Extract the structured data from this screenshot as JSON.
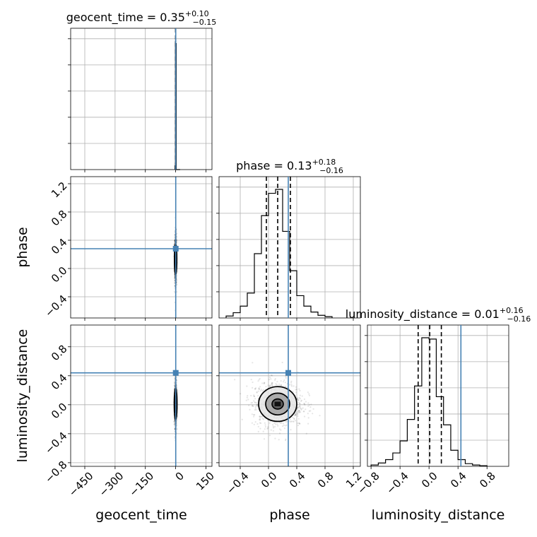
{
  "colors": {
    "truth": "#4682b4",
    "hist": "#000000",
    "grid": "#b0b0b0"
  },
  "chart_data": {
    "type": "corner",
    "grid": true,
    "parameters": [
      {
        "name": "geocent_time",
        "xlabel": "geocent_time",
        "ylabel": "",
        "title": {
          "prefix": "geocent_time = ",
          "median": "0.35",
          "upper": "+0.10",
          "lower": "−0.15"
        },
        "range": [
          -520,
          180
        ],
        "ticks": [
          -450,
          -300,
          -150,
          0,
          150
        ],
        "tick_labels": [
          "−450",
          "−300",
          "−150",
          "0",
          "150"
        ],
        "truth": 0.5,
        "quantiles": [
          0.2,
          0.35,
          0.45
        ],
        "hist": {
          "edges": [
            -3,
            -1,
            1,
            3,
            22
          ],
          "counts": [
            0.03,
            1.0,
            0.98,
            0.0
          ]
        }
      },
      {
        "name": "phase",
        "xlabel": "phase",
        "ylabel": "phase",
        "title": {
          "prefix": "phase = ",
          "median": "0.13",
          "upper": "+0.18",
          "lower": "−0.16"
        },
        "range": [
          -0.7,
          1.3
        ],
        "ticks": [
          -0.4,
          0.0,
          0.4,
          0.8,
          1.2
        ],
        "tick_labels": [
          "−0.4",
          "0.0",
          "0.4",
          "0.8",
          "1.2"
        ],
        "truth": 0.28,
        "quantiles": [
          -0.03,
          0.13,
          0.31
        ],
        "hist": {
          "edges": [
            -0.6,
            -0.5,
            -0.4,
            -0.3,
            -0.2,
            -0.1,
            0.0,
            0.1,
            0.2,
            0.3,
            0.4,
            0.5,
            0.6,
            0.7,
            0.8,
            0.9
          ],
          "counts": [
            0.015,
            0.04,
            0.09,
            0.19,
            0.49,
            0.78,
            0.95,
            0.98,
            0.66,
            0.36,
            0.17,
            0.09,
            0.045,
            0.02,
            0.01
          ]
        }
      },
      {
        "name": "luminosity_distance",
        "xlabel": "luminosity_distance",
        "ylabel": "luminosity_distance",
        "title": {
          "prefix": "luminosity_distance = ",
          "median": "0.01",
          "upper": "+0.16",
          "lower": "−0.16"
        },
        "range": [
          -0.85,
          1.1
        ],
        "ticks": [
          -0.8,
          -0.4,
          0.0,
          0.4,
          0.8
        ],
        "tick_labels": [
          "−0.8",
          "−0.4",
          "0.0",
          "0.4",
          "0.8"
        ],
        "truth": 0.44,
        "quantiles": [
          -0.15,
          0.01,
          0.17
        ],
        "hist": {
          "edges": [
            -0.8,
            -0.7,
            -0.6,
            -0.5,
            -0.4,
            -0.3,
            -0.2,
            -0.1,
            0.0,
            0.1,
            0.2,
            0.3,
            0.4,
            0.5,
            0.6,
            0.7,
            0.8
          ],
          "counts": [
            0.01,
            0.025,
            0.05,
            0.1,
            0.19,
            0.35,
            0.6,
            0.96,
            0.95,
            0.52,
            0.31,
            0.12,
            0.05,
            0.02,
            0.01,
            0.005
          ]
        }
      }
    ],
    "pairs": [
      {
        "x": "geocent_time",
        "y": "phase",
        "center": [
          0,
          0.13
        ],
        "contour_widths": [
          [
            3,
            0.12
          ],
          [
            6,
            0.22
          ]
        ],
        "scatter_spread": [
          2.5,
          0.18
        ]
      },
      {
        "x": "geocent_time",
        "y": "luminosity_distance",
        "center": [
          0,
          0.01
        ],
        "contour_widths": [
          [
            4,
            0.12
          ],
          [
            7,
            0.22
          ]
        ],
        "scatter_spread": [
          2.5,
          0.16
        ]
      },
      {
        "x": "phase",
        "y": "luminosity_distance",
        "center": [
          0.13,
          0.01
        ],
        "contour_widths": [
          [
            0.08,
            0.07
          ],
          [
            0.17,
            0.15
          ],
          [
            0.27,
            0.24
          ]
        ],
        "scatter_spread": [
          0.18,
          0.16
        ]
      }
    ]
  }
}
